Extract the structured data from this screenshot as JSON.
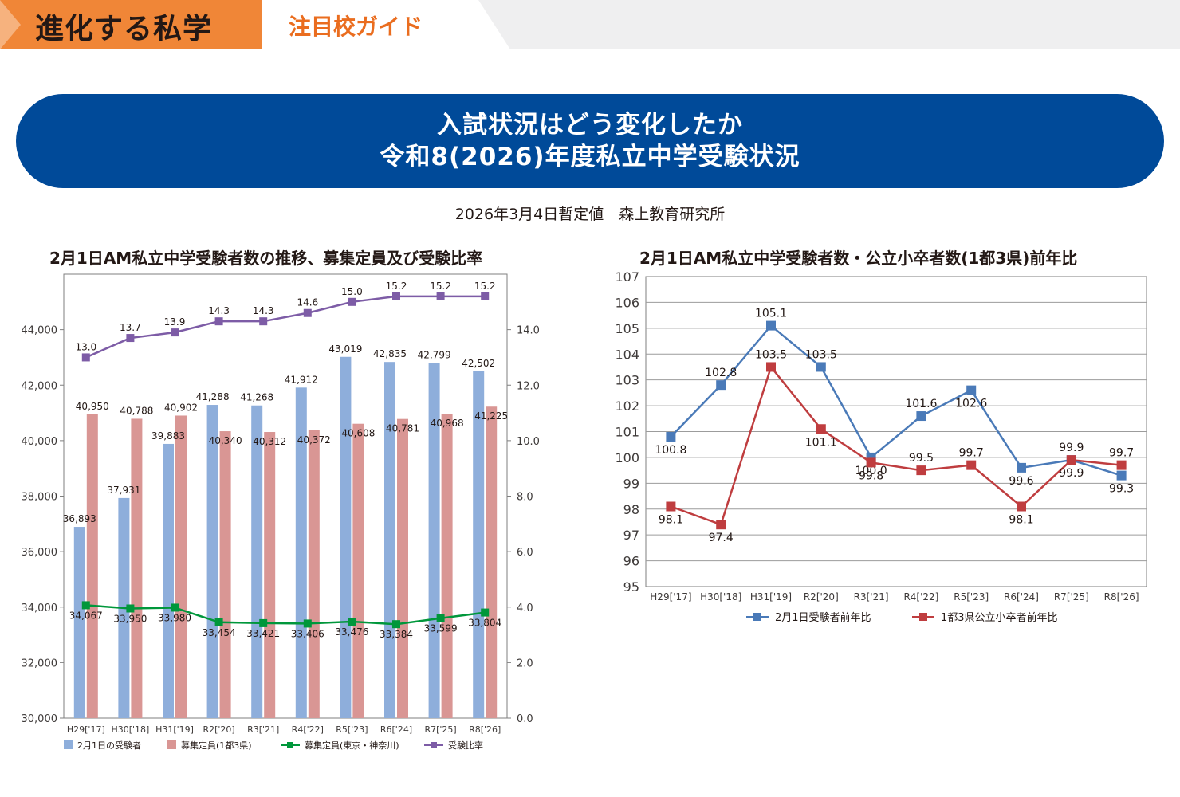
{
  "header": {
    "series_title": "進化する私学",
    "section_title": "注目校ガイド"
  },
  "banner": {
    "line1": "入試状況はどう変化したか",
    "line2": "令和8(2026)年度私立中学受験状況"
  },
  "source_note": "2026年3月4日暫定値　森上教育研究所",
  "colors": {
    "header_orange": "#f08637",
    "section_title_orange": "#ea6d1f",
    "banner_blue": "#004a99",
    "bar_examinees": "#8eaedb",
    "bar_capacity": "#d99694",
    "line_capacity_tokyo": "#00973b",
    "line_ratio": "#7d5ca6",
    "line_examinees_yoy": "#4a7ab8",
    "line_graduates_yoy": "#bf3d3f"
  },
  "chart_data": [
    {
      "type": "bar",
      "title": "2月1日AM私立中学受験者数の推移、募集定員及び受験比率",
      "categories": [
        "H29['17]",
        "H30['18]",
        "H31['19]",
        "R2['20]",
        "R3['21]",
        "R4['22]",
        "R5['23]",
        "R6['24]",
        "R7['25]",
        "R8['26]"
      ],
      "ylim": [
        30000,
        46000
      ],
      "yticks": [
        "30,000",
        "32,000",
        "34,000",
        "36,000",
        "38,000",
        "40,000",
        "42,000",
        "44,000"
      ],
      "y2lim": [
        0,
        16
      ],
      "y2ticks": [
        "0.0",
        "2.0",
        "4.0",
        "6.0",
        "8.0",
        "10.0",
        "12.0",
        "14.0"
      ],
      "grid": false,
      "legend_position": "bottom",
      "series": [
        {
          "name": "2月1日の受験者",
          "kind": "bar",
          "values": [
            36893,
            37931,
            39883,
            41288,
            41268,
            41912,
            43019,
            42835,
            42799,
            42502
          ],
          "labels": [
            "36,893",
            "37,931",
            "39,883",
            "41,288",
            "41,268",
            "41,912",
            "43,019",
            "42,835",
            "42,799",
            "42,502"
          ]
        },
        {
          "name": "募集定員(1都3県)",
          "kind": "bar",
          "values": [
            40950,
            40788,
            40902,
            40340,
            40312,
            40372,
            40608,
            40781,
            40968,
            41225
          ],
          "labels": [
            "40,950",
            "40,788",
            "40,902",
            "40,340",
            "40,312",
            "40,372",
            "40,608",
            "40,781",
            "40,968",
            "41,225"
          ]
        },
        {
          "name": "募集定員(東京・神奈川)",
          "kind": "line",
          "values": [
            34067,
            33950,
            33980,
            33454,
            33421,
            33406,
            33476,
            33384,
            33599,
            33804
          ],
          "labels": [
            "34,067",
            "33,950",
            "33,980",
            "33,454",
            "33,421",
            "33,406",
            "33,476",
            "33,384",
            "33,599",
            "33,804"
          ]
        },
        {
          "name": "受験比率",
          "kind": "line",
          "axis": "right",
          "values": [
            13.0,
            13.7,
            13.9,
            14.3,
            14.3,
            14.6,
            15.0,
            15.2,
            15.2,
            15.2
          ],
          "labels": [
            "13.0",
            "13.7",
            "13.9",
            "14.3",
            "14.3",
            "14.6",
            "15.0",
            "15.2",
            "15.2",
            "15.2"
          ]
        }
      ]
    },
    {
      "type": "line",
      "title": "2月1日AM私立中学受験者数・公立小卒者数(1都3県)前年比",
      "categories": [
        "H29['17]",
        "H30['18]",
        "H31['19]",
        "R2['20]",
        "R3['21]",
        "R4['22]",
        "R5['23]",
        "R6['24]",
        "R7['25]",
        "R8['26]"
      ],
      "ylim": [
        95,
        107
      ],
      "yticks": [
        "95",
        "96",
        "97",
        "98",
        "99",
        "100",
        "101",
        "102",
        "103",
        "104",
        "105",
        "106",
        "107"
      ],
      "grid": true,
      "legend_position": "bottom",
      "series": [
        {
          "name": "2月1日受験者前年比",
          "values": [
            100.8,
            102.8,
            105.1,
            103.5,
            100.0,
            101.6,
            102.6,
            99.6,
            99.9,
            99.3
          ],
          "labels": [
            "100.8",
            "102.8",
            "105.1",
            "103.5",
            "100.0",
            "101.6",
            "102.6",
            "99.6",
            "99.9",
            "99.3"
          ]
        },
        {
          "name": "1都3県公立小卒者前年比",
          "values": [
            98.1,
            97.4,
            103.5,
            101.1,
            99.8,
            99.5,
            99.7,
            98.1,
            99.9,
            99.7
          ],
          "labels": [
            "98.1",
            "97.4",
            "103.5",
            "101.1",
            "99.8",
            "99.5",
            "99.7",
            "98.1",
            "99.9",
            "99.7"
          ]
        }
      ]
    }
  ]
}
